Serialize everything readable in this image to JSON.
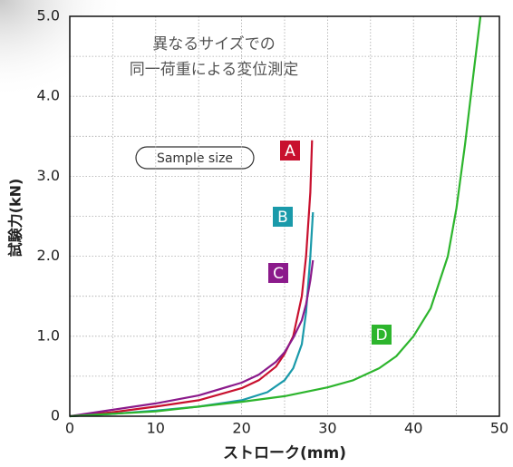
{
  "chart_data": {
    "type": "line",
    "title": [
      "異なるサイズでの",
      "同一荷重による変位測定"
    ],
    "annotation": "Sample size",
    "x_label": "ストローク(mm)",
    "y_label": "試験力(kN)",
    "xlim": [
      0,
      50
    ],
    "ylim": [
      0,
      5
    ],
    "xticks": [
      0,
      10,
      20,
      30,
      40,
      50
    ],
    "yticks": [
      0,
      {
        "value": 1,
        "label": "1.0"
      },
      {
        "value": 2,
        "label": "2.0"
      },
      {
        "value": 3,
        "label": "3.0"
      },
      {
        "value": 4,
        "label": "4.0"
      },
      {
        "value": 5,
        "label": "5.0"
      }
    ],
    "minor_grid_x": [
      5,
      15,
      25,
      35,
      45
    ],
    "minor_grid_y": [
      0.5,
      1.5,
      2.5,
      3.5,
      4.5
    ],
    "grid": true,
    "series": [
      {
        "name": "A",
        "color": "#c8102e",
        "x": [
          0,
          5,
          10,
          15,
          20,
          22,
          24,
          25,
          26,
          27,
          27.5,
          28,
          28.2
        ],
        "values": [
          0,
          0.05,
          0.12,
          0.2,
          0.35,
          0.45,
          0.62,
          0.78,
          1.0,
          1.5,
          2.0,
          2.8,
          3.45
        ]
      },
      {
        "name": "B",
        "color": "#1a9aaa",
        "x": [
          0,
          5,
          10,
          15,
          20,
          23,
          25,
          26,
          27,
          27.5,
          28,
          28.3
        ],
        "values": [
          0,
          0.03,
          0.07,
          0.12,
          0.2,
          0.3,
          0.45,
          0.6,
          0.9,
          1.3,
          2.0,
          2.55
        ]
      },
      {
        "name": "C",
        "color": "#8b1a8b",
        "x": [
          0,
          5,
          10,
          15,
          20,
          22,
          24,
          25,
          26,
          27,
          27.5,
          28,
          28.3
        ],
        "values": [
          0,
          0.08,
          0.16,
          0.26,
          0.42,
          0.52,
          0.68,
          0.8,
          0.98,
          1.2,
          1.4,
          1.7,
          1.95
        ]
      },
      {
        "name": "D",
        "color": "#2db52d",
        "x": [
          0,
          10,
          20,
          25,
          30,
          33,
          36,
          38,
          40,
          42,
          44,
          45,
          46,
          47,
          47.8
        ],
        "values": [
          0,
          0.06,
          0.18,
          0.25,
          0.36,
          0.45,
          0.6,
          0.75,
          1.0,
          1.35,
          2.0,
          2.6,
          3.4,
          4.3,
          5.0
        ]
      }
    ]
  }
}
